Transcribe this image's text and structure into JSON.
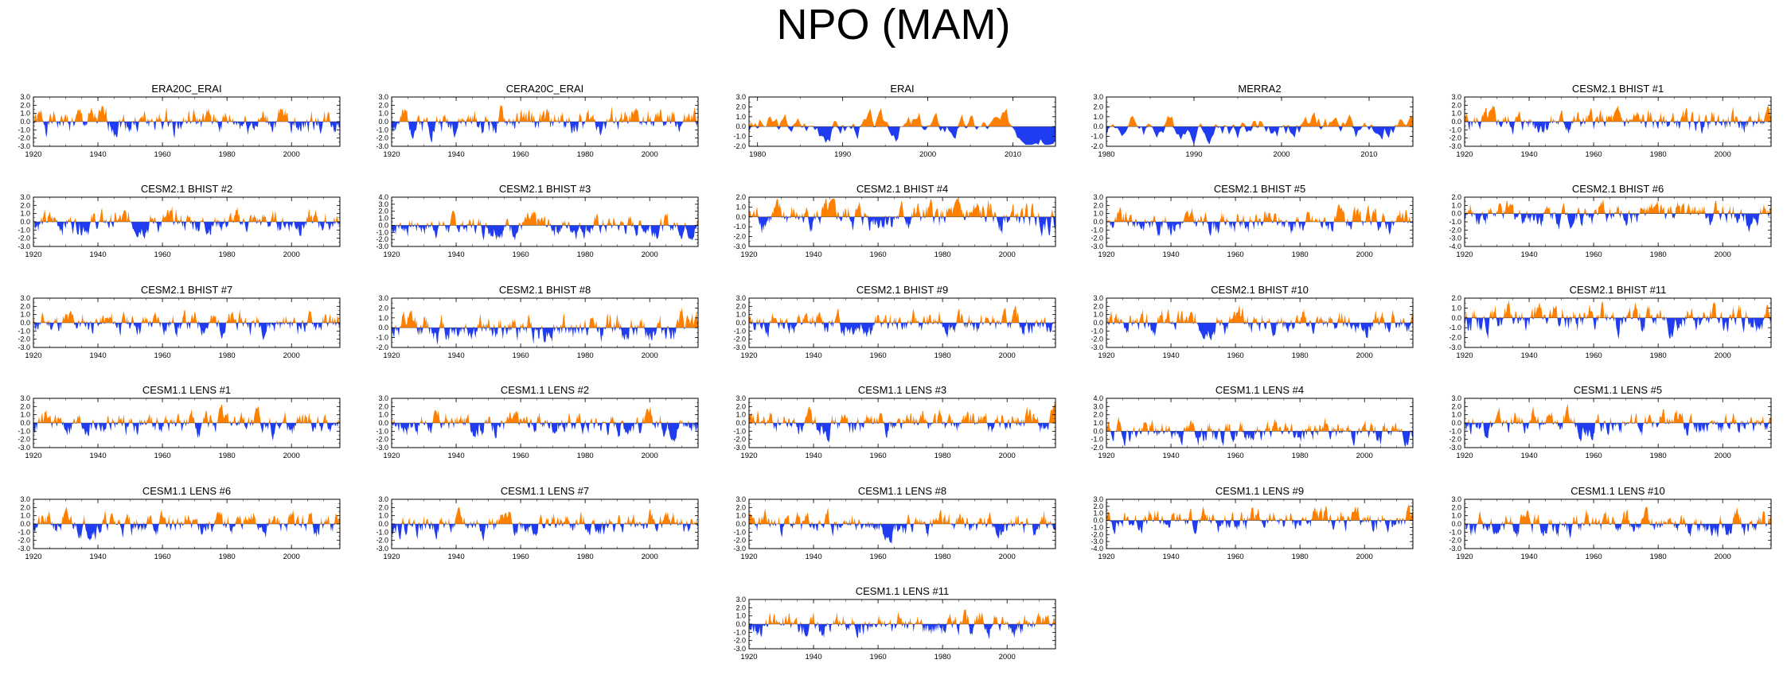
{
  "figure_title": "NPO (MAM)",
  "colors": {
    "positive": "#ff8000",
    "negative": "#1f3cf0",
    "axis": "#000000"
  },
  "chart_data": [
    {
      "title": "ERA20C_ERAI",
      "type": "area",
      "x_range": [
        1920,
        2015
      ],
      "x_ticks": [
        1920,
        1940,
        1960,
        1980,
        2000
      ],
      "ylim": [
        -3,
        3
      ],
      "y_ticks": [
        -3,
        -2,
        -1,
        0,
        1,
        2,
        3
      ],
      "amp": 1.1,
      "seed": 1
    },
    {
      "title": "CERA20C_ERAI",
      "type": "area",
      "x_range": [
        1920,
        2015
      ],
      "x_ticks": [
        1920,
        1940,
        1960,
        1980,
        2000
      ],
      "ylim": [
        -3,
        3
      ],
      "y_ticks": [
        -3,
        -2,
        -1,
        0,
        1,
        2,
        3
      ],
      "amp": 1.1,
      "seed": 2
    },
    {
      "title": "ERAI",
      "type": "area",
      "x_range": [
        1979,
        2015
      ],
      "x_ticks": [
        1980,
        1990,
        2000,
        2010
      ],
      "ylim": [
        -2,
        3
      ],
      "y_ticks": [
        -2,
        -1,
        0,
        1,
        2,
        3
      ],
      "amp": 1.0,
      "seed": 3
    },
    {
      "title": "MERRA2",
      "type": "area",
      "x_range": [
        1980,
        2015
      ],
      "x_ticks": [
        1980,
        1990,
        2000,
        2010
      ],
      "ylim": [
        -2,
        3
      ],
      "y_ticks": [
        -2,
        -1,
        0,
        1,
        2,
        3
      ],
      "amp": 1.0,
      "seed": 4
    },
    {
      "title": "CESM2.1 BHIST #1",
      "type": "area",
      "x_range": [
        1920,
        2015
      ],
      "x_ticks": [
        1920,
        1940,
        1960,
        1980,
        2000
      ],
      "ylim": [
        -3,
        3
      ],
      "y_ticks": [
        -3,
        -2,
        -1,
        0,
        1,
        2,
        3
      ],
      "amp": 1.0,
      "seed": 5
    },
    {
      "title": "CESM2.1 BHIST #2",
      "type": "area",
      "x_range": [
        1920,
        2015
      ],
      "x_ticks": [
        1920,
        1940,
        1960,
        1980,
        2000
      ],
      "ylim": [
        -3,
        3
      ],
      "y_ticks": [
        -3,
        -2,
        -1,
        0,
        1,
        2,
        3
      ],
      "amp": 1.0,
      "seed": 6
    },
    {
      "title": "CESM2.1 BHIST #3",
      "type": "area",
      "x_range": [
        1920,
        2015
      ],
      "x_ticks": [
        1920,
        1940,
        1960,
        1980,
        2000
      ],
      "ylim": [
        -3,
        4
      ],
      "y_ticks": [
        -3,
        -2,
        -1,
        0,
        1,
        2,
        3,
        4
      ],
      "amp": 1.1,
      "seed": 7
    },
    {
      "title": "CESM2.1 BHIST #4",
      "type": "area",
      "x_range": [
        1920,
        2015
      ],
      "x_ticks": [
        1920,
        1940,
        1960,
        1980,
        2000
      ],
      "ylim": [
        -3,
        2
      ],
      "y_ticks": [
        -3,
        -2,
        -1,
        0,
        1,
        2
      ],
      "amp": 1.0,
      "seed": 8
    },
    {
      "title": "CESM2.1 BHIST #5",
      "type": "area",
      "x_range": [
        1920,
        2015
      ],
      "x_ticks": [
        1920,
        1940,
        1960,
        1980,
        2000
      ],
      "ylim": [
        -3,
        3
      ],
      "y_ticks": [
        -3,
        -2,
        -1,
        0,
        1,
        2,
        3
      ],
      "amp": 1.0,
      "seed": 9
    },
    {
      "title": "CESM2.1 BHIST #6",
      "type": "area",
      "x_range": [
        1920,
        2015
      ],
      "x_ticks": [
        1920,
        1940,
        1960,
        1980,
        2000
      ],
      "ylim": [
        -4,
        2
      ],
      "y_ticks": [
        -4,
        -3,
        -2,
        -1,
        0,
        1,
        2
      ],
      "amp": 1.0,
      "seed": 10
    },
    {
      "title": "CESM2.1 BHIST #7",
      "type": "area",
      "x_range": [
        1920,
        2015
      ],
      "x_ticks": [
        1920,
        1940,
        1960,
        1980,
        2000
      ],
      "ylim": [
        -3,
        3
      ],
      "y_ticks": [
        -3,
        -2,
        -1,
        0,
        1,
        2,
        3
      ],
      "amp": 1.0,
      "seed": 11
    },
    {
      "title": "CESM2.1 BHIST #8",
      "type": "area",
      "x_range": [
        1920,
        2015
      ],
      "x_ticks": [
        1920,
        1940,
        1960,
        1980,
        2000
      ],
      "ylim": [
        -2,
        3
      ],
      "y_ticks": [
        -2,
        -1,
        0,
        1,
        2,
        3
      ],
      "amp": 1.0,
      "seed": 12
    },
    {
      "title": "CESM2.1 BHIST #9",
      "type": "area",
      "x_range": [
        1920,
        2015
      ],
      "x_ticks": [
        1920,
        1940,
        1960,
        1980,
        2000
      ],
      "ylim": [
        -3,
        3
      ],
      "y_ticks": [
        -3,
        -2,
        -1,
        0,
        1,
        2,
        3
      ],
      "amp": 1.0,
      "seed": 13
    },
    {
      "title": "CESM2.1 BHIST #10",
      "type": "area",
      "x_range": [
        1920,
        2015
      ],
      "x_ticks": [
        1920,
        1940,
        1960,
        1980,
        2000
      ],
      "ylim": [
        -3,
        3
      ],
      "y_ticks": [
        -3,
        -2,
        -1,
        0,
        1,
        2,
        3
      ],
      "amp": 1.0,
      "seed": 14
    },
    {
      "title": "CESM2.1 BHIST #11",
      "type": "area",
      "x_range": [
        1920,
        2015
      ],
      "x_ticks": [
        1920,
        1940,
        1960,
        1980,
        2000
      ],
      "ylim": [
        -3,
        2
      ],
      "y_ticks": [
        -3,
        -2,
        -1,
        0,
        1,
        2
      ],
      "amp": 1.0,
      "seed": 15
    },
    {
      "title": "CESM1.1 LENS #1",
      "type": "area",
      "x_range": [
        1920,
        2015
      ],
      "x_ticks": [
        1920,
        1940,
        1960,
        1980,
        2000
      ],
      "ylim": [
        -3,
        3
      ],
      "y_ticks": [
        -3,
        -2,
        -1,
        0,
        1,
        2,
        3
      ],
      "amp": 1.0,
      "seed": 16
    },
    {
      "title": "CESM1.1 LENS #2",
      "type": "area",
      "x_range": [
        1920,
        2015
      ],
      "x_ticks": [
        1920,
        1940,
        1960,
        1980,
        2000
      ],
      "ylim": [
        -3,
        3
      ],
      "y_ticks": [
        -3,
        -2,
        -1,
        0,
        1,
        2,
        3
      ],
      "amp": 1.0,
      "seed": 17
    },
    {
      "title": "CESM1.1 LENS #3",
      "type": "area",
      "x_range": [
        1920,
        2015
      ],
      "x_ticks": [
        1920,
        1940,
        1960,
        1980,
        2000
      ],
      "ylim": [
        -3,
        3
      ],
      "y_ticks": [
        -3,
        -2,
        -1,
        0,
        1,
        2,
        3
      ],
      "amp": 1.0,
      "seed": 18
    },
    {
      "title": "CESM1.1 LENS #4",
      "type": "area",
      "x_range": [
        1920,
        2015
      ],
      "x_ticks": [
        1920,
        1940,
        1960,
        1980,
        2000
      ],
      "ylim": [
        -2,
        4
      ],
      "y_ticks": [
        -2,
        -1,
        0,
        1,
        2,
        3,
        4
      ],
      "amp": 1.0,
      "seed": 19
    },
    {
      "title": "CESM1.1 LENS #5",
      "type": "area",
      "x_range": [
        1920,
        2015
      ],
      "x_ticks": [
        1920,
        1940,
        1960,
        1980,
        2000
      ],
      "ylim": [
        -3,
        3
      ],
      "y_ticks": [
        -3,
        -2,
        -1,
        0,
        1,
        2,
        3
      ],
      "amp": 1.0,
      "seed": 20
    },
    {
      "title": "CESM1.1 LENS #6",
      "type": "area",
      "x_range": [
        1920,
        2015
      ],
      "x_ticks": [
        1920,
        1940,
        1960,
        1980,
        2000
      ],
      "ylim": [
        -3,
        3
      ],
      "y_ticks": [
        -3,
        -2,
        -1,
        0,
        1,
        2,
        3
      ],
      "amp": 1.0,
      "seed": 21
    },
    {
      "title": "CESM1.1 LENS #7",
      "type": "area",
      "x_range": [
        1920,
        2015
      ],
      "x_ticks": [
        1920,
        1940,
        1960,
        1980,
        2000
      ],
      "ylim": [
        -3,
        3
      ],
      "y_ticks": [
        -3,
        -2,
        -1,
        0,
        1,
        2,
        3
      ],
      "amp": 1.0,
      "seed": 22
    },
    {
      "title": "CESM1.1 LENS #8",
      "type": "area",
      "x_range": [
        1920,
        2015
      ],
      "x_ticks": [
        1920,
        1940,
        1960,
        1980,
        2000
      ],
      "ylim": [
        -3,
        3
      ],
      "y_ticks": [
        -3,
        -2,
        -1,
        0,
        1,
        2,
        3
      ],
      "amp": 1.0,
      "seed": 23
    },
    {
      "title": "CESM1.1 LENS #9",
      "type": "area",
      "x_range": [
        1920,
        2015
      ],
      "x_ticks": [
        1920,
        1940,
        1960,
        1980,
        2000
      ],
      "ylim": [
        -4,
        3
      ],
      "y_ticks": [
        -4,
        -3,
        -2,
        -1,
        0,
        1,
        2,
        3
      ],
      "amp": 1.1,
      "seed": 24
    },
    {
      "title": "CESM1.1 LENS #10",
      "type": "area",
      "x_range": [
        1920,
        2015
      ],
      "x_ticks": [
        1920,
        1940,
        1960,
        1980,
        2000
      ],
      "ylim": [
        -3,
        3
      ],
      "y_ticks": [
        -3,
        -2,
        -1,
        0,
        1,
        2,
        3
      ],
      "amp": 1.0,
      "seed": 25
    },
    {
      "title": "CESM1.1 LENS #11",
      "type": "area",
      "x_range": [
        1920,
        2015
      ],
      "x_ticks": [
        1920,
        1940,
        1960,
        1980,
        2000
      ],
      "ylim": [
        -3,
        3
      ],
      "y_ticks": [
        -3,
        -2,
        -1,
        0,
        1,
        2,
        3
      ],
      "amp": 1.0,
      "seed": 26
    }
  ]
}
